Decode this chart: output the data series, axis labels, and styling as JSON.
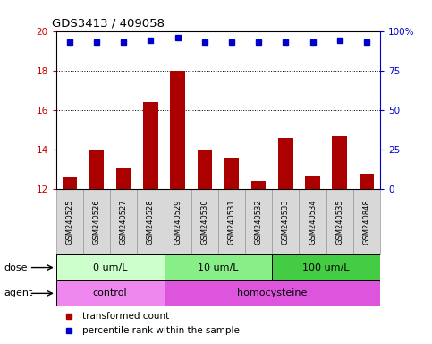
{
  "title": "GDS3413 / 409058",
  "samples": [
    "GSM240525",
    "GSM240526",
    "GSM240527",
    "GSM240528",
    "GSM240529",
    "GSM240530",
    "GSM240531",
    "GSM240532",
    "GSM240533",
    "GSM240534",
    "GSM240535",
    "GSM240848"
  ],
  "bar_values": [
    12.6,
    14.0,
    13.1,
    16.4,
    18.0,
    14.0,
    13.6,
    12.4,
    14.6,
    12.7,
    14.7,
    12.8
  ],
  "dot_values": [
    93,
    93,
    93,
    94,
    96,
    93,
    93,
    93,
    93,
    93,
    94,
    93
  ],
  "ylim_left": [
    12,
    20
  ],
  "ylim_right": [
    0,
    100
  ],
  "yticks_left": [
    12,
    14,
    16,
    18,
    20
  ],
  "yticks_right": [
    0,
    25,
    50,
    75,
    100
  ],
  "ytick_labels_right": [
    "0",
    "25",
    "50",
    "75",
    "100%"
  ],
  "bar_color": "#AA0000",
  "dot_color": "#0000CC",
  "bar_width": 0.55,
  "dose_groups": [
    {
      "label": "0 um/L",
      "start": 0,
      "end": 4,
      "color": "#CCFFCC"
    },
    {
      "label": "10 um/L",
      "start": 4,
      "end": 8,
      "color": "#88EE88"
    },
    {
      "label": "100 um/L",
      "start": 8,
      "end": 12,
      "color": "#44CC44"
    }
  ],
  "agent_groups": [
    {
      "label": "control",
      "start": 0,
      "end": 4,
      "color": "#EE88EE"
    },
    {
      "label": "homocysteine",
      "start": 4,
      "end": 12,
      "color": "#DD55DD"
    }
  ],
  "dose_label": "dose",
  "agent_label": "agent",
  "legend_bar_label": "transformed count",
  "legend_dot_label": "percentile rank within the sample",
  "grid_color": "black",
  "tick_color_left": "#CC0000",
  "tick_color_right": "#0000CC",
  "sample_bg_color": "#D8D8D8",
  "cell_border_color": "#999999"
}
